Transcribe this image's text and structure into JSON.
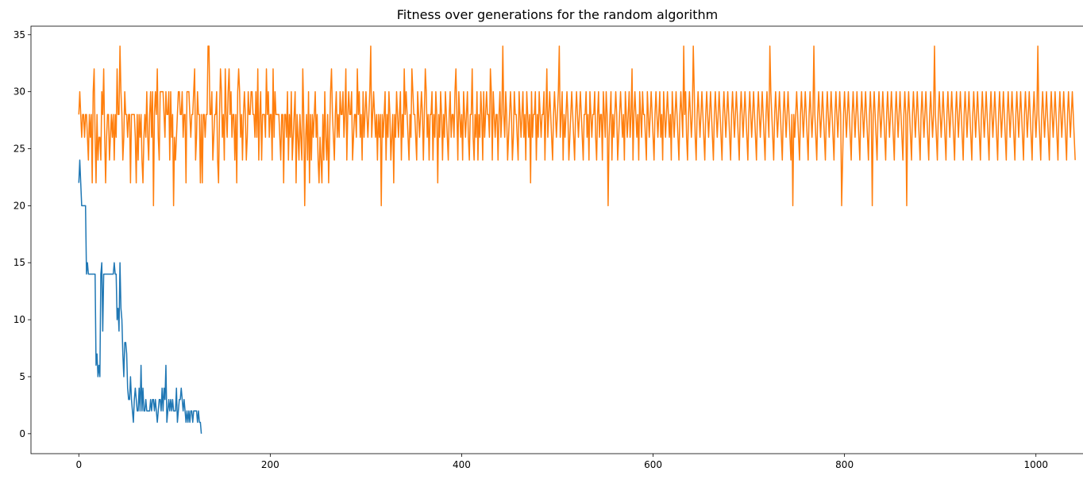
{
  "chart_data": {
    "type": "line",
    "title": "Fitness over generations for the random algorithm",
    "xlabel": "",
    "ylabel": "",
    "xlim": [
      -50,
      1050
    ],
    "ylim": [
      -1.75,
      35.75
    ],
    "xticks": [
      0,
      200,
      400,
      600,
      800,
      1000
    ],
    "yticks": [
      0,
      5,
      10,
      15,
      20,
      25,
      30,
      35
    ],
    "grid": false,
    "legend": "none",
    "series": [
      {
        "color": "#1f77b4",
        "x": [
          0,
          1,
          2,
          3,
          4,
          5,
          6,
          7,
          8,
          9,
          10,
          11,
          12,
          13,
          14,
          15,
          16,
          17,
          18,
          19,
          20,
          21,
          22,
          23,
          24,
          25,
          26,
          27,
          28,
          29,
          30,
          31,
          32,
          33,
          34,
          35,
          36,
          37,
          38,
          39,
          40,
          41,
          42,
          43,
          44,
          45,
          46,
          47,
          48,
          49,
          50,
          51,
          52,
          53,
          54,
          55,
          56,
          57,
          58,
          59,
          60,
          61,
          62,
          63,
          64,
          65,
          66,
          67,
          68,
          69,
          70,
          71,
          72,
          73,
          74,
          75,
          76,
          77,
          78,
          79,
          80,
          81,
          82,
          83,
          84,
          85,
          86,
          87,
          88,
          89,
          90,
          91,
          92,
          93,
          94,
          95,
          96,
          97,
          98,
          99,
          100,
          101,
          102,
          103,
          104,
          105,
          106,
          107,
          108,
          109,
          110,
          111,
          112,
          113,
          114,
          115,
          116,
          117,
          118,
          119,
          120,
          121,
          122,
          123,
          124,
          125,
          126,
          127,
          128
        ],
        "values": [
          22,
          24,
          22,
          20,
          20,
          20,
          20,
          20,
          14,
          15,
          14,
          14,
          14,
          14,
          14,
          14,
          14,
          14,
          6,
          7,
          5,
          6,
          5,
          14,
          15,
          9,
          14,
          14,
          14,
          14,
          14,
          14,
          14,
          14,
          14,
          14,
          14,
          15,
          14,
          14,
          10,
          11,
          9,
          15,
          11,
          10,
          7,
          5,
          8,
          8,
          7,
          4,
          3,
          3,
          5,
          3,
          2,
          1,
          3,
          4,
          3,
          2,
          2,
          4,
          2,
          6,
          2,
          4,
          2,
          2,
          3,
          2,
          2,
          2,
          2,
          3,
          2,
          3,
          3,
          2,
          3,
          2,
          1,
          2,
          3,
          3,
          2,
          4,
          2,
          4,
          3,
          6,
          1,
          2,
          3,
          2,
          3,
          2,
          3,
          2,
          2,
          2,
          4,
          1,
          2,
          3,
          3,
          4,
          3,
          2,
          3,
          2,
          1,
          2,
          1,
          2,
          1,
          2,
          2,
          1,
          2,
          2,
          2,
          2,
          1,
          2,
          1,
          1,
          0
        ]
      },
      {
        "color": "#ff7f0e",
        "x_start": 0,
        "x_step": 1,
        "values": [
          28,
          30,
          28,
          26,
          28,
          28,
          26,
          28,
          28,
          26,
          24,
          28,
          26,
          28,
          22,
          30,
          32,
          26,
          22,
          28,
          24,
          26,
          26,
          24,
          30,
          28,
          32,
          26,
          22,
          26,
          28,
          28,
          24,
          26,
          28,
          26,
          28,
          24,
          28,
          26,
          32,
          28,
          28,
          34,
          30,
          28,
          24,
          26,
          30,
          28,
          28,
          26,
          28,
          28,
          22,
          28,
          28,
          28,
          28,
          26,
          22,
          28,
          24,
          28,
          26,
          28,
          24,
          22,
          26,
          28,
          26,
          30,
          26,
          24,
          28,
          30,
          26,
          30,
          20,
          28,
          30,
          28,
          32,
          26,
          24,
          30,
          30,
          30,
          30,
          28,
          26,
          30,
          28,
          28,
          30,
          24,
          30,
          26,
          28,
          20,
          26,
          24,
          26,
          28,
          30,
          30,
          28,
          28,
          30,
          26,
          28,
          28,
          22,
          30,
          30,
          30,
          28,
          26,
          28,
          28,
          30,
          32,
          24,
          26,
          30,
          28,
          28,
          22,
          28,
          22,
          28,
          28,
          26,
          28,
          28,
          34,
          34,
          28,
          28,
          30,
          24,
          26,
          28,
          28,
          30,
          24,
          22,
          28,
          32,
          30,
          26,
          28,
          24,
          32,
          28,
          26,
          30,
          32,
          28,
          30,
          26,
          28,
          28,
          24,
          28,
          22,
          30,
          32,
          30,
          26,
          28,
          24,
          28,
          30,
          28,
          24,
          26,
          30,
          28,
          28,
          30,
          30,
          28,
          28,
          26,
          30,
          26,
          32,
          24,
          28,
          30,
          24,
          28,
          28,
          28,
          26,
          32,
          28,
          30,
          26,
          28,
          28,
          24,
          32,
          26,
          30,
          28,
          28,
          28,
          28,
          26,
          24,
          28,
          28,
          22,
          28,
          28,
          26,
          30,
          24,
          28,
          26,
          30,
          24,
          26,
          28,
          30,
          22,
          28,
          26,
          24,
          28,
          26,
          24,
          32,
          28,
          20,
          26,
          28,
          24,
          30,
          22,
          28,
          24,
          28,
          26,
          28,
          30,
          26,
          28,
          24,
          22,
          26,
          24,
          22,
          28,
          24,
          30,
          26,
          24,
          28,
          22,
          26,
          30,
          32,
          28,
          26,
          24,
          28,
          30,
          26,
          28,
          26,
          30,
          28,
          28,
          30,
          26,
          28,
          32,
          24,
          28,
          30,
          28,
          28,
          30,
          24,
          26,
          28,
          28,
          26,
          32,
          28,
          30,
          26,
          28,
          24,
          30,
          26,
          28,
          30,
          28,
          26,
          28,
          30,
          34,
          26,
          28,
          30,
          28,
          26,
          28,
          24,
          28,
          26,
          28,
          20,
          28,
          26,
          28,
          30,
          24,
          28,
          26,
          30,
          28,
          24,
          26,
          28,
          22,
          28,
          26,
          30,
          28,
          26,
          28,
          30,
          24,
          28,
          26,
          32,
          28,
          30,
          28,
          26,
          24,
          28,
          26,
          32,
          30,
          28,
          28,
          26,
          24,
          30,
          28,
          26,
          28,
          30,
          28,
          24,
          28,
          32,
          30,
          26,
          28,
          24,
          28,
          28,
          30,
          24,
          28,
          26,
          30,
          28,
          22,
          28,
          26,
          30,
          28,
          24,
          28,
          26,
          30,
          28,
          26,
          24,
          28,
          30,
          26,
          28,
          28,
          26,
          30,
          32,
          28,
          24,
          30,
          28,
          26,
          28,
          24,
          30,
          28,
          26,
          28,
          30,
          26,
          24,
          28,
          28,
          32,
          26,
          24,
          28,
          26,
          30,
          24,
          28,
          26,
          30,
          28,
          24,
          30,
          26,
          28,
          30,
          28,
          28,
          26,
          32,
          30,
          24,
          30,
          28,
          26,
          28,
          28,
          24,
          28,
          30,
          26,
          28,
          34,
          28,
          26,
          30,
          28,
          24,
          26,
          28,
          30,
          28,
          24,
          26,
          30,
          28,
          28,
          26,
          24,
          30,
          28,
          26,
          28,
          30,
          26,
          28,
          24,
          30,
          28,
          26,
          28,
          22,
          30,
          26,
          28,
          28,
          30,
          24,
          28,
          26,
          30,
          28,
          26,
          28,
          28,
          30,
          24,
          28,
          32,
          26,
          28,
          30,
          28,
          26,
          24,
          28,
          30,
          28,
          26,
          28,
          30,
          34,
          26,
          28,
          30,
          24,
          28,
          26,
          28,
          30,
          28,
          24,
          26,
          28,
          30,
          28,
          26,
          24,
          28,
          30,
          28,
          26,
          28,
          30,
          28,
          26,
          24,
          28,
          28,
          30,
          26,
          28,
          24,
          30,
          28,
          26,
          28,
          28,
          30,
          26,
          24,
          28,
          30,
          26,
          28,
          28,
          24,
          30,
          28,
          26,
          30,
          28,
          20,
          26,
          28,
          30,
          24,
          28,
          26,
          28,
          30,
          28,
          24,
          26,
          28,
          30,
          28,
          26,
          28,
          24,
          30,
          28,
          26,
          28,
          30,
          26,
          28,
          32,
          24,
          28,
          30,
          28,
          26,
          28,
          24,
          30,
          28,
          26,
          30,
          28,
          28,
          26,
          24,
          30,
          28,
          26,
          28,
          30,
          28,
          26,
          24,
          28,
          30,
          28,
          26,
          28,
          30,
          26,
          28,
          24,
          30,
          28,
          26,
          28,
          30,
          28,
          26,
          28,
          24,
          30,
          28,
          26,
          28,
          30,
          28,
          26,
          24,
          28,
          30,
          28,
          26,
          34,
          28,
          30,
          26,
          24,
          28,
          30,
          28,
          26,
          28,
          34,
          30,
          26,
          24,
          28,
          30,
          28,
          26,
          28,
          30,
          28,
          26,
          24,
          28,
          30,
          28,
          26,
          28,
          30,
          28,
          26,
          24,
          28,
          30,
          28,
          26,
          28,
          30,
          28,
          26,
          24,
          28,
          30,
          28,
          26,
          28,
          30,
          28,
          26,
          24,
          28,
          30,
          28,
          26,
          28,
          30,
          28,
          26,
          24,
          28,
          30,
          28,
          26,
          28,
          30,
          28,
          26,
          24,
          28,
          30,
          28,
          26,
          28,
          30,
          28,
          26,
          24,
          28,
          30,
          28,
          26,
          28,
          30,
          28,
          26,
          24,
          28,
          30,
          28,
          26,
          34,
          30,
          28,
          26,
          24,
          28,
          30,
          28,
          26,
          28,
          30,
          28,
          26,
          24,
          28,
          30,
          28,
          26,
          28,
          30,
          28,
          26,
          24,
          28,
          20,
          28,
          26,
          28,
          30,
          28,
          26,
          24,
          28,
          30,
          28,
          26,
          28,
          30,
          28,
          26,
          24,
          28,
          30,
          28,
          26,
          28,
          34,
          28,
          26,
          24,
          28,
          30,
          28,
          26,
          28,
          30,
          28,
          26,
          24,
          28,
          30,
          28,
          26,
          28,
          30,
          28,
          26,
          24,
          28,
          30,
          28,
          26,
          28,
          30,
          28,
          20,
          24,
          28,
          30,
          28,
          26,
          28,
          30,
          28,
          26,
          24,
          28,
          30,
          28,
          26,
          28,
          30,
          28,
          26,
          24,
          28,
          30,
          28,
          26,
          28,
          30,
          28,
          26,
          24,
          28,
          30,
          28,
          20,
          28,
          30,
          28,
          26,
          24,
          28,
          30,
          28,
          26,
          28,
          30,
          28,
          26,
          24,
          28,
          30,
          28,
          26,
          28,
          30,
          28,
          26,
          24,
          28,
          30,
          28,
          26,
          28,
          30,
          28,
          26,
          24,
          28,
          30,
          28,
          20,
          28,
          30,
          28,
          26,
          24,
          28,
          30,
          28,
          26,
          28,
          30,
          28,
          26,
          24,
          28,
          30,
          28,
          26,
          28,
          30,
          28,
          26,
          24,
          28,
          30,
          28,
          26,
          28,
          34,
          28,
          26,
          24,
          28,
          30,
          28,
          26,
          28,
          30,
          28,
          26,
          24,
          28,
          30,
          28,
          26,
          28,
          30,
          28,
          26,
          24,
          28,
          30,
          28,
          26,
          28,
          30,
          28,
          26,
          24,
          28,
          30,
          28,
          26,
          28,
          30,
          28,
          26,
          24,
          28,
          30,
          28,
          26,
          28,
          30,
          28,
          26,
          24,
          28,
          30,
          28,
          26,
          28,
          30,
          28,
          26,
          24,
          28,
          30,
          28,
          26,
          28,
          30,
          28,
          26,
          24,
          28,
          30,
          28,
          26,
          28,
          30,
          28,
          26,
          24,
          28,
          30,
          28,
          26,
          28,
          30,
          28,
          26,
          24,
          28,
          30,
          28,
          26,
          28,
          30,
          28,
          26,
          24,
          28,
          30,
          28,
          26,
          28,
          30,
          28,
          26,
          24,
          28,
          30,
          28,
          26,
          28,
          34,
          28,
          26,
          24,
          28,
          30,
          28,
          26,
          28,
          30,
          28,
          26,
          24,
          28,
          30,
          28,
          26,
          28,
          30,
          28,
          26,
          24,
          28,
          30,
          28,
          26,
          28,
          30,
          28,
          26,
          24,
          28,
          30,
          28,
          26,
          28,
          30,
          28,
          26,
          24
        ]
      }
    ]
  }
}
